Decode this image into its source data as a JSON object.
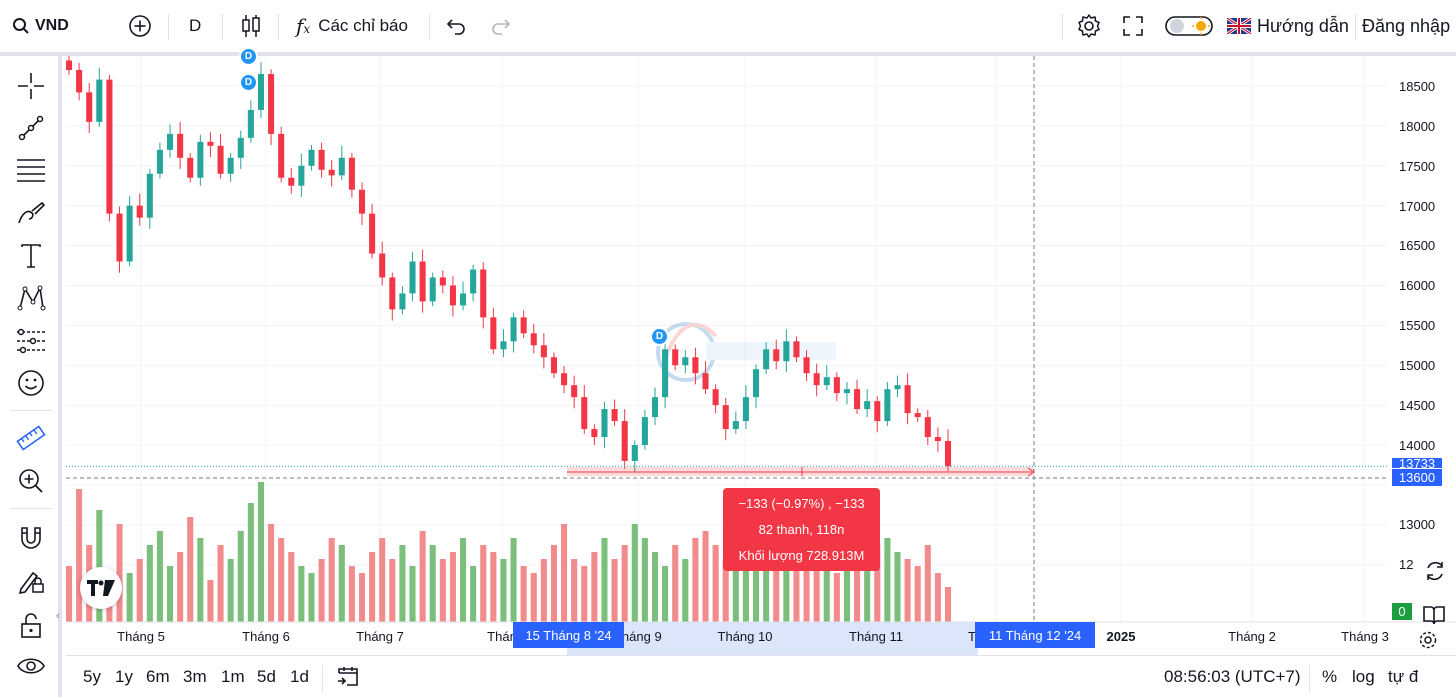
{
  "topbar": {
    "symbol": "VND",
    "interval": "D",
    "indicators_label": "Các chỉ báo",
    "guide_label": "Hướng dẫn",
    "login_label": "Đăng nhập"
  },
  "tooltip": {
    "line1": "−133 (−0.97%) , −133",
    "line2": "82 thanh, 118n",
    "line3": "Khối lượng 728.913M"
  },
  "x_axis": {
    "labels": [
      "Tháng 5",
      "Tháng 6",
      "Tháng 7",
      "Thán",
      "tháng 9",
      "Tháng 10",
      "Tháng 11",
      "T",
      "2025",
      "Tháng 2",
      "Tháng 3"
    ],
    "start_highlight": "15 Tháng 8 '24",
    "end_highlight": "11 Tháng 12 '24"
  },
  "y_axis": {
    "labels": [
      "18500",
      "18000",
      "17500",
      "17000",
      "16500",
      "16000",
      "15500",
      "15000",
      "14500",
      "14000",
      "13000",
      "12"
    ],
    "last_price": "13733",
    "cursor_price": "13600",
    "volume_badge": "0"
  },
  "bottombar": {
    "ranges": [
      "5y",
      "1y",
      "6m",
      "3m",
      "1m",
      "5d",
      "1d"
    ],
    "clock": "08:56:03 (UTC+7)",
    "percent_label": "%",
    "log_label": "log",
    "auto_label": "tự đ"
  },
  "markers": {
    "dividend": "D"
  },
  "colors": {
    "up": "#26a69a",
    "down": "#f23645",
    "accent": "#2962ff",
    "up_vol": "#7cbf7c",
    "down_vol": "#f28b8b"
  },
  "chart_data": {
    "type": "candlestick",
    "close_series": [
      18700,
      18420,
      18050,
      18580,
      16900,
      16300,
      17000,
      16850,
      17400,
      17700,
      17900,
      17600,
      17350,
      17800,
      17750,
      17400,
      17600,
      17850,
      18200,
      18650,
      17900,
      17350,
      17250,
      17500,
      17700,
      17450,
      17380,
      17600,
      17200,
      16900,
      16400,
      16100,
      15700,
      15900,
      16300,
      15800,
      16100,
      16000,
      15750,
      15900,
      16200,
      15600,
      15200,
      15300,
      15600,
      15400,
      15250,
      15100,
      14900,
      14750,
      14600,
      14200,
      14100,
      14450,
      14300,
      13800,
      14000,
      14350,
      14600,
      15200,
      15000,
      15100,
      14900,
      14700,
      14500,
      14200,
      14300,
      14600,
      14950,
      15200,
      15050,
      15300,
      15100,
      14900,
      14750,
      14850,
      14650,
      14700,
      14450,
      14550,
      14300,
      14700,
      14750,
      14400,
      14350,
      14100,
      14050,
      13733
    ],
    "volume_series": [
      40,
      95,
      55,
      80,
      30,
      70,
      35,
      45,
      55,
      65,
      40,
      50,
      75,
      60,
      30,
      55,
      45,
      65,
      85,
      100,
      70,
      60,
      50,
      40,
      35,
      45,
      60,
      55,
      40,
      35,
      50,
      60,
      45,
      55,
      40,
      65,
      55,
      45,
      50,
      60,
      40,
      55,
      50,
      45,
      60,
      40,
      35,
      45,
      55,
      70,
      45,
      40,
      50,
      60,
      45,
      55,
      70,
      60,
      50,
      40,
      55,
      45,
      60,
      65,
      55,
      45,
      50,
      60,
      70,
      55,
      45,
      50,
      55,
      60,
      45,
      40,
      35,
      50,
      40,
      45,
      55,
      60,
      50,
      45,
      40,
      55,
      35,
      25
    ],
    "ylim": [
      12000,
      18700
    ]
  }
}
